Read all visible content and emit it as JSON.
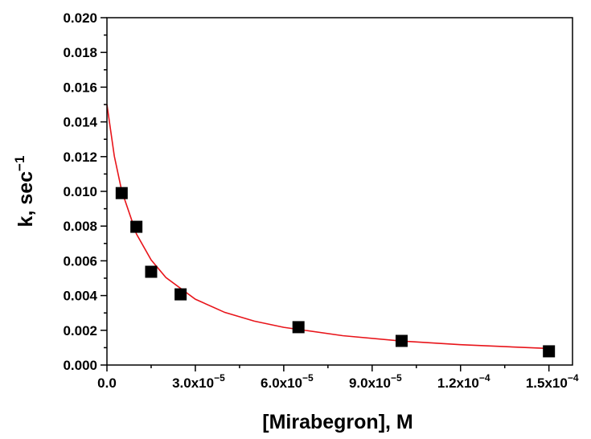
{
  "chart_data": {
    "type": "scatter",
    "xlabel": "[Mirabegron], M",
    "ylabel": "k, sec",
    "ylabel_exponent": "−1",
    "xlim": [
      0,
      0.000158
    ],
    "ylim": [
      0,
      0.02
    ],
    "xticks": [
      {
        "value": 0,
        "label": "0.0"
      },
      {
        "value": 3e-05,
        "label": "3.0x10",
        "exponent": "−5"
      },
      {
        "value": 6e-05,
        "label": "6.0x10",
        "exponent": "−5"
      },
      {
        "value": 9e-05,
        "label": "9.0x10",
        "exponent": "−5"
      },
      {
        "value": 0.00012,
        "label": "1.2x10",
        "exponent": "−4"
      },
      {
        "value": 0.00015,
        "label": "1.5x10",
        "exponent": "−4"
      }
    ],
    "yticks": [
      {
        "value": 0,
        "label": "0.000"
      },
      {
        "value": 0.002,
        "label": "0.002"
      },
      {
        "value": 0.004,
        "label": "0.004"
      },
      {
        "value": 0.006,
        "label": "0.006"
      },
      {
        "value": 0.008,
        "label": "0.008"
      },
      {
        "value": 0.01,
        "label": "0.010"
      },
      {
        "value": 0.012,
        "label": "0.012"
      },
      {
        "value": 0.014,
        "label": "0.014"
      },
      {
        "value": 0.016,
        "label": "0.016"
      },
      {
        "value": 0.018,
        "label": "0.018"
      },
      {
        "value": 0.02,
        "label": "0.020"
      }
    ],
    "series": [
      {
        "kind": "points",
        "color": "#000000",
        "x": [
          5e-06,
          1e-05,
          1.5e-05,
          2.5e-05,
          6.5e-05,
          0.0001,
          0.00015
        ],
        "values": [
          0.0099,
          0.00796,
          0.00537,
          0.00407,
          0.00218,
          0.00139,
          0.00079
        ]
      },
      {
        "kind": "line",
        "color": "#e8141a",
        "x": [
          0,
          2.5e-06,
          5e-06,
          1e-05,
          1.5e-05,
          2e-05,
          3e-05,
          4e-05,
          5e-05,
          6e-05,
          8e-05,
          0.0001,
          0.00012,
          0.00015
        ],
        "values": [
          0.015,
          0.01203,
          0.01004,
          0.00755,
          0.00605,
          0.00504,
          0.00379,
          0.00303,
          0.00253,
          0.00217,
          0.00169,
          0.00138,
          0.00117,
          0.00095
        ]
      }
    ]
  }
}
